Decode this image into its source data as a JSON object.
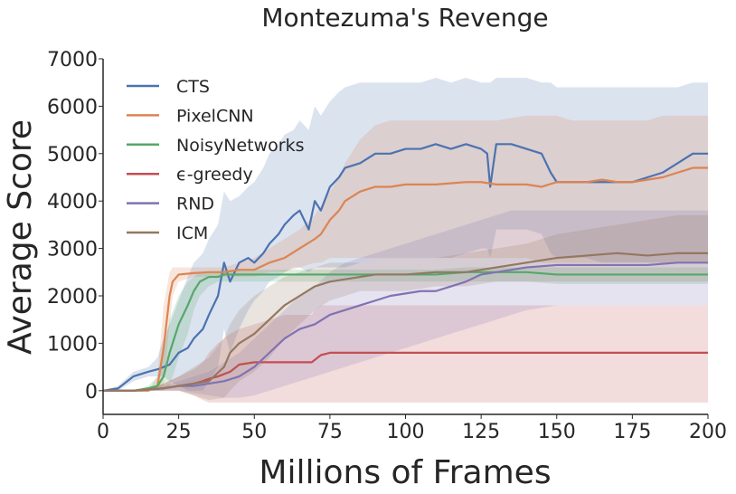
{
  "chart_data": {
    "type": "line",
    "title": "Montezuma's Revenge",
    "xlabel": "Millions of Frames",
    "ylabel": "Average Score",
    "xlim": [
      0,
      200
    ],
    "ylim": [
      -500,
      7000
    ],
    "xticks": [
      0,
      25,
      50,
      75,
      100,
      125,
      150,
      175,
      200
    ],
    "yticks": [
      0,
      1000,
      2000,
      3000,
      4000,
      5000,
      6000,
      7000
    ],
    "grid": false,
    "legend_position": "top-left",
    "series": [
      {
        "name": "CTS",
        "color": "#4c72b0",
        "x": [
          0,
          5,
          10,
          15,
          18,
          20,
          22,
          25,
          28,
          30,
          33,
          35,
          38,
          40,
          42,
          45,
          48,
          50,
          53,
          55,
          58,
          60,
          63,
          65,
          68,
          70,
          72,
          75,
          78,
          80,
          85,
          90,
          95,
          100,
          105,
          110,
          115,
          120,
          125,
          127,
          128,
          130,
          135,
          140,
          145,
          148,
          150,
          155,
          160,
          165,
          170,
          175,
          180,
          185,
          190,
          195,
          200
        ],
        "y": [
          0,
          50,
          300,
          400,
          450,
          500,
          550,
          800,
          900,
          1100,
          1300,
          1600,
          2000,
          2700,
          2300,
          2700,
          2800,
          2700,
          2900,
          3100,
          3300,
          3500,
          3700,
          3800,
          3400,
          4000,
          3800,
          4300,
          4500,
          4700,
          4800,
          5000,
          5000,
          5100,
          5100,
          5200,
          5100,
          5200,
          5100,
          5000,
          4300,
          5200,
          5200,
          5100,
          5000,
          4600,
          4400,
          4400,
          4400,
          4400,
          4400,
          4400,
          4500,
          4600,
          4800,
          5000,
          5000
        ],
        "upper": [
          0,
          100,
          400,
          500,
          700,
          1100,
          1400,
          1900,
          2400,
          2700,
          2900,
          3200,
          3500,
          4200,
          4000,
          4100,
          4300,
          4400,
          4700,
          5000,
          5200,
          5400,
          5500,
          5700,
          5500,
          6000,
          5800,
          6100,
          6300,
          6400,
          6500,
          6500,
          6500,
          6500,
          6500,
          6600,
          6500,
          6600,
          6500,
          6500,
          6500,
          6600,
          6600,
          6600,
          6500,
          6500,
          6400,
          6400,
          6400,
          6400,
          6400,
          6400,
          6400,
          6400,
          6400,
          6500,
          6500
        ],
        "lower": [
          0,
          0,
          200,
          300,
          300,
          300,
          200,
          100,
          0,
          0,
          0,
          200,
          500,
          1300,
          800,
          1300,
          1700,
          1900,
          2100,
          2300,
          2400,
          2500,
          2600,
          2600,
          2500,
          2600,
          2600,
          2600,
          2600,
          2600,
          2700,
          2800,
          2800,
          2800,
          2800,
          2800,
          2800,
          2900,
          3000,
          3000,
          2800,
          3400,
          3400,
          3400,
          3300,
          2900,
          2800,
          2800,
          2800,
          2700,
          2700,
          2700,
          2700,
          2700,
          2700,
          2700,
          2700
        ]
      },
      {
        "name": "PixelCNN",
        "color": "#dd8452",
        "x": [
          0,
          5,
          10,
          15,
          18,
          20,
          22,
          23,
          25,
          30,
          35,
          40,
          45,
          50,
          55,
          60,
          65,
          70,
          72,
          75,
          78,
          80,
          85,
          90,
          95,
          100,
          110,
          120,
          125,
          130,
          140,
          145,
          150,
          155,
          160,
          165,
          170,
          175,
          180,
          185,
          190,
          195,
          200
        ],
        "y": [
          0,
          0,
          0,
          0,
          100,
          900,
          2000,
          2300,
          2450,
          2480,
          2500,
          2500,
          2550,
          2550,
          2700,
          2800,
          3000,
          3200,
          3300,
          3600,
          3800,
          4000,
          4200,
          4300,
          4300,
          4350,
          4350,
          4400,
          4400,
          4350,
          4350,
          4300,
          4400,
          4400,
          4400,
          4450,
          4400,
          4400,
          4450,
          4500,
          4600,
          4700,
          4700
        ],
        "upper": [
          0,
          0,
          0,
          0,
          300,
          1800,
          2500,
          2600,
          2600,
          2600,
          2600,
          2600,
          2700,
          2800,
          3000,
          3200,
          3400,
          3700,
          3900,
          4200,
          4500,
          4800,
          5300,
          5600,
          5700,
          5700,
          5700,
          5700,
          5700,
          5700,
          5800,
          5800,
          5800,
          5700,
          5700,
          5700,
          5700,
          5700,
          5700,
          5800,
          5800,
          5800,
          5800
        ],
        "lower": [
          0,
          0,
          0,
          0,
          0,
          100,
          1400,
          2000,
          2300,
          2400,
          2400,
          2400,
          2400,
          2400,
          2500,
          2500,
          2600,
          2700,
          2700,
          2800,
          2800,
          2800,
          2800,
          2800,
          2800,
          2800,
          2800,
          2800,
          2800,
          2800,
          2800,
          2700,
          2700,
          2700,
          2700,
          2700,
          2700,
          2700,
          2700,
          2700,
          2700,
          2700,
          2700
        ]
      },
      {
        "name": "NoisyNetworks",
        "color": "#55a868",
        "x": [
          0,
          10,
          15,
          18,
          20,
          22,
          25,
          28,
          30,
          32,
          35,
          38,
          40,
          45,
          50,
          60,
          70,
          80,
          90,
          100,
          110,
          120,
          130,
          140,
          150,
          160,
          170,
          180,
          190,
          200
        ],
        "y": [
          0,
          0,
          50,
          100,
          300,
          800,
          1400,
          1800,
          2100,
          2300,
          2400,
          2400,
          2450,
          2450,
          2450,
          2450,
          2450,
          2450,
          2450,
          2450,
          2450,
          2500,
          2500,
          2500,
          2450,
          2450,
          2450,
          2450,
          2450,
          2450
        ],
        "upper": [
          0,
          0,
          100,
          300,
          800,
          1500,
          2000,
          2300,
          2400,
          2500,
          2500,
          2500,
          2550,
          2550,
          2550,
          2550,
          2550,
          2550,
          2550,
          2550,
          2550,
          2600,
          2600,
          2600,
          2600,
          2600,
          2600,
          2600,
          2600,
          2600
        ],
        "lower": [
          0,
          0,
          0,
          0,
          0,
          100,
          700,
          1200,
          1700,
          2000,
          2200,
          2300,
          2300,
          2300,
          2300,
          2300,
          2300,
          2300,
          2300,
          2300,
          2300,
          2300,
          2300,
          2300,
          2250,
          2250,
          2250,
          2250,
          2250,
          2250
        ]
      },
      {
        "name": "ϵ-greedy",
        "color": "#c44e52",
        "x": [
          0,
          10,
          20,
          25,
          30,
          33,
          35,
          38,
          40,
          42,
          45,
          50,
          55,
          60,
          65,
          69,
          70,
          72,
          75,
          80,
          90,
          100,
          110,
          120,
          130,
          140,
          150,
          160,
          170,
          180,
          190,
          200
        ],
        "y": [
          0,
          0,
          50,
          100,
          150,
          200,
          250,
          300,
          350,
          400,
          550,
          600,
          600,
          600,
          600,
          600,
          650,
          750,
          800,
          800,
          800,
          800,
          800,
          800,
          800,
          800,
          800,
          800,
          800,
          800,
          800,
          800
        ],
        "upper": [
          0,
          0,
          150,
          300,
          450,
          600,
          800,
          1000,
          1100,
          1200,
          1300,
          1400,
          1500,
          1600,
          1600,
          1600,
          1700,
          1800,
          1800,
          1800,
          1800,
          1800,
          1800,
          1800,
          1800,
          1800,
          1800,
          1800,
          1800,
          1800,
          1800,
          1800
        ],
        "lower": [
          0,
          0,
          0,
          0,
          -100,
          -200,
          -250,
          -250,
          -250,
          -250,
          -250,
          -250,
          -250,
          -250,
          -250,
          -250,
          -250,
          -250,
          -250,
          -250,
          -250,
          -250,
          -250,
          -250,
          -250,
          -250,
          -250,
          -250,
          -250,
          -250,
          -250,
          -250
        ]
      },
      {
        "name": "RND",
        "color": "#8172b2",
        "x": [
          0,
          10,
          20,
          25,
          30,
          35,
          40,
          45,
          50,
          55,
          60,
          65,
          70,
          75,
          80,
          85,
          90,
          95,
          100,
          105,
          110,
          115,
          120,
          125,
          130,
          135,
          140,
          150,
          160,
          170,
          180,
          190,
          200
        ],
        "y": [
          0,
          0,
          50,
          100,
          100,
          150,
          200,
          300,
          500,
          800,
          1100,
          1300,
          1400,
          1600,
          1700,
          1800,
          1900,
          2000,
          2050,
          2100,
          2100,
          2200,
          2300,
          2450,
          2500,
          2550,
          2600,
          2650,
          2650,
          2650,
          2650,
          2700,
          2700
        ],
        "upper": [
          0,
          0,
          100,
          200,
          300,
          400,
          600,
          800,
          1100,
          1400,
          1700,
          2000,
          2200,
          2500,
          2700,
          2800,
          2900,
          3000,
          3100,
          3200,
          3300,
          3400,
          3500,
          3600,
          3700,
          3800,
          3800,
          3800,
          3800,
          3800,
          3800,
          3800,
          3800
        ],
        "lower": [
          0,
          0,
          0,
          0,
          -50,
          -100,
          -150,
          -150,
          -100,
          0,
          100,
          200,
          300,
          400,
          500,
          600,
          700,
          800,
          900,
          1000,
          1100,
          1200,
          1300,
          1400,
          1500,
          1600,
          1700,
          1800,
          1800,
          1800,
          1800,
          1800,
          1800
        ]
      },
      {
        "name": "ICM",
        "color": "#937860",
        "x": [
          0,
          10,
          20,
          25,
          30,
          35,
          40,
          42,
          45,
          50,
          55,
          60,
          65,
          70,
          75,
          80,
          85,
          90,
          100,
          110,
          120,
          130,
          140,
          150,
          160,
          170,
          180,
          190,
          200
        ],
        "y": [
          0,
          0,
          50,
          100,
          150,
          200,
          500,
          800,
          1000,
          1200,
          1500,
          1800,
          2000,
          2200,
          2300,
          2350,
          2400,
          2450,
          2450,
          2500,
          2500,
          2600,
          2700,
          2800,
          2850,
          2900,
          2850,
          2900,
          2900
        ],
        "upper": [
          0,
          0,
          150,
          300,
          500,
          700,
          1100,
          1400,
          1700,
          2000,
          2200,
          2400,
          2500,
          2600,
          2700,
          2700,
          2700,
          2800,
          2800,
          2800,
          2900,
          3000,
          3100,
          3300,
          3400,
          3500,
          3600,
          3700,
          3700
        ],
        "lower": [
          0,
          0,
          0,
          0,
          -100,
          -200,
          -150,
          0,
          200,
          400,
          700,
          1100,
          1400,
          1700,
          1900,
          2000,
          2100,
          2100,
          2100,
          2200,
          2200,
          2300,
          2300,
          2300,
          2300,
          2300,
          2300,
          2300,
          2300
        ]
      }
    ]
  }
}
